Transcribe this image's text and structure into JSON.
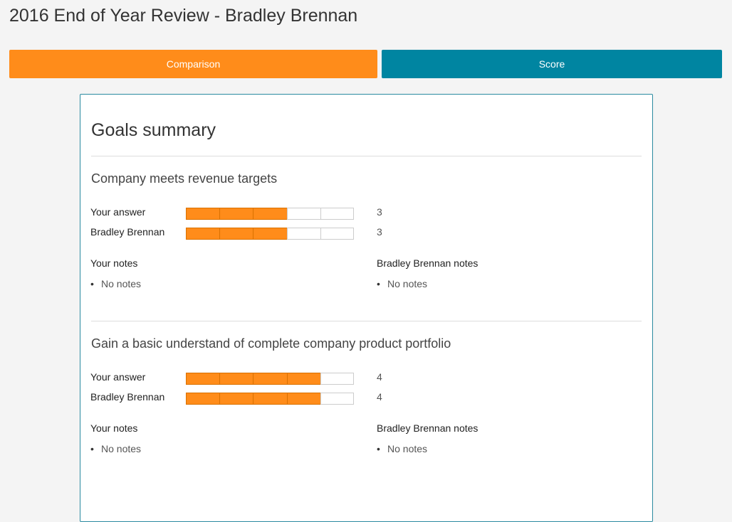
{
  "header": {
    "title": "2016 End of Year Review - Bradley Brennan"
  },
  "tabs": [
    {
      "label": "Comparison",
      "color": "#ff8c1a"
    },
    {
      "label": "Score",
      "color": "#0085a1"
    }
  ],
  "panel": {
    "title": "Goals summary",
    "rating_max": 5,
    "goals": [
      {
        "title": "Company meets revenue targets",
        "ratings": [
          {
            "label": "Your answer",
            "value": 3
          },
          {
            "label": "Bradley Brennan",
            "value": 3
          }
        ],
        "notes": [
          {
            "title": "Your notes",
            "items": [
              "No notes"
            ]
          },
          {
            "title": "Bradley Brennan notes",
            "items": [
              "No notes"
            ]
          }
        ]
      },
      {
        "title": "Gain a basic understand of complete company product portfolio",
        "ratings": [
          {
            "label": "Your answer",
            "value": 4
          },
          {
            "label": "Bradley Brennan",
            "value": 4
          }
        ],
        "notes": [
          {
            "title": "Your notes",
            "items": [
              "No notes"
            ]
          },
          {
            "title": "Bradley Brennan notes",
            "items": [
              "No notes"
            ]
          }
        ]
      }
    ]
  }
}
